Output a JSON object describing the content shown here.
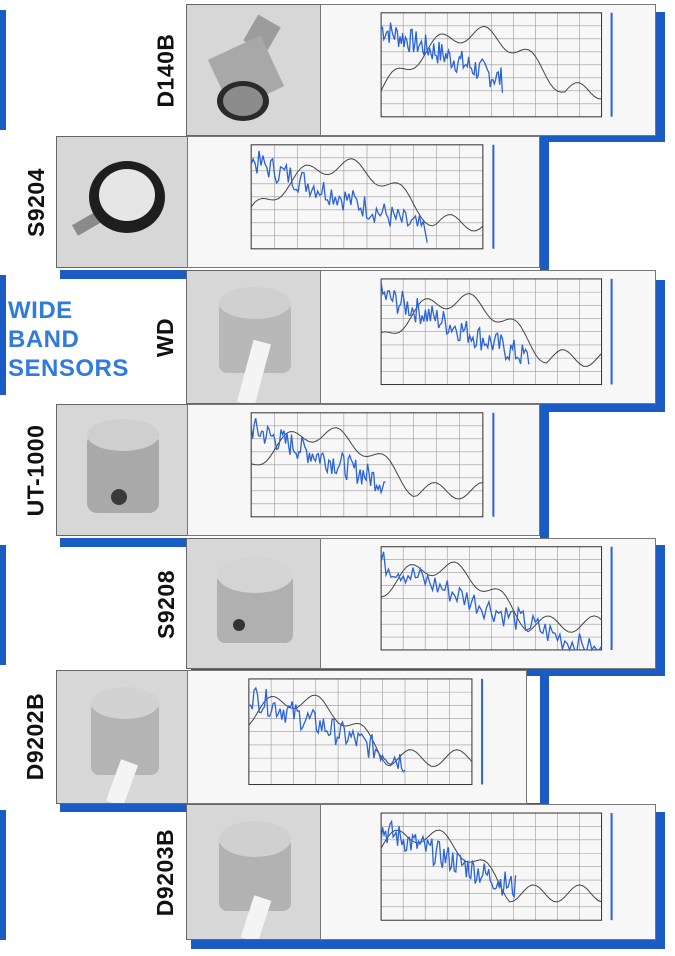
{
  "heading": {
    "lines": [
      "WIDE",
      "BAND",
      "SENSORS"
    ]
  },
  "colors": {
    "accent": "#1a5bc4",
    "heading": "#2f7be0",
    "blue_curve": "#2a62d8",
    "black_curve": "#444444"
  },
  "sensors": [
    {
      "label": "D140B"
    },
    {
      "label": "S9204"
    },
    {
      "label": "WD"
    },
    {
      "label": "UT-1000"
    },
    {
      "label": "S9208"
    },
    {
      "label": "D9202B"
    },
    {
      "label": "D9203B"
    }
  ]
}
